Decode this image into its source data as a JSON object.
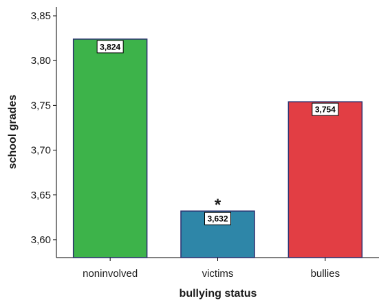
{
  "chart_data": {
    "type": "bar",
    "categories": [
      "noninvolved",
      "victims",
      "bullies"
    ],
    "values": [
      3.824,
      3.632,
      3.754
    ],
    "data_labels": [
      "3,824",
      "3,632",
      "3,754"
    ],
    "colors": [
      "#3DB34A",
      "#2E86A8",
      "#E23E44"
    ],
    "bar_outline": "#2B2F6E",
    "xlabel": "bullying status",
    "ylabel": "school grades",
    "ylim": [
      3.58,
      3.86
    ],
    "yticks": [
      3.6,
      3.65,
      3.7,
      3.75,
      3.8,
      3.85
    ],
    "ytick_labels": [
      "3,60",
      "3,65",
      "3,70",
      "3,75",
      "3,80",
      "3,85"
    ],
    "grid": false,
    "annotations": [
      {
        "category": "victims",
        "text": "*"
      }
    ]
  }
}
